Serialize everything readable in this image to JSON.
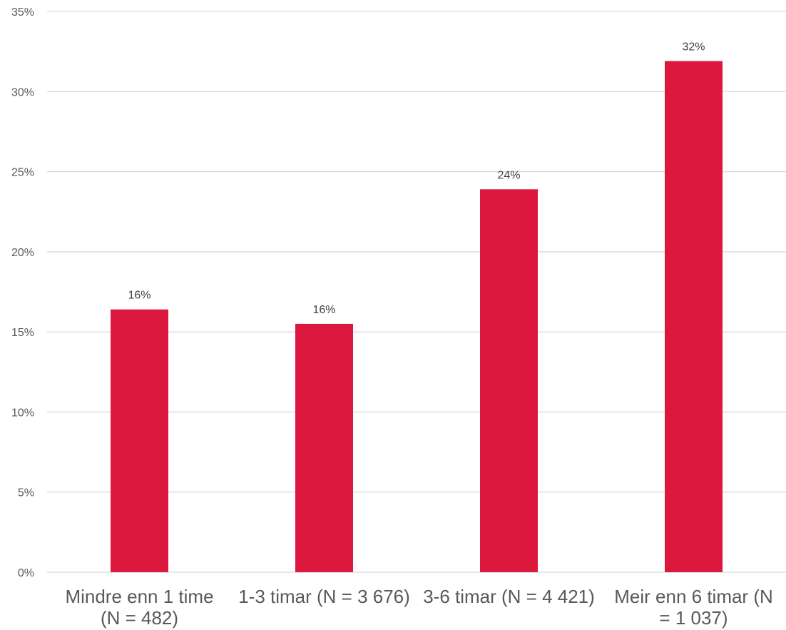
{
  "chart_data": {
    "type": "bar",
    "categories": [
      [
        "Mindre enn 1 time",
        "(N = 482)"
      ],
      [
        "1-3 timar (N = 3 676)"
      ],
      [
        "3-6 timar (N = 4 421)"
      ],
      [
        "Meir enn 6 timar (N",
        "= 1 037)"
      ]
    ],
    "values": [
      16.4,
      15.5,
      23.9,
      31.9
    ],
    "data_labels": [
      "16%",
      "16%",
      "24%",
      "32%"
    ],
    "ylim": [
      0,
      35
    ],
    "yticks": [
      0,
      5,
      10,
      15,
      20,
      25,
      30,
      35
    ],
    "ytick_labels": [
      "0%",
      "5%",
      "10%",
      "15%",
      "20%",
      "25%",
      "30%",
      "35%"
    ],
    "title": "",
    "xlabel": "",
    "ylabel": "",
    "grid": true,
    "legend": "none",
    "bar_color": "#dc183f"
  }
}
